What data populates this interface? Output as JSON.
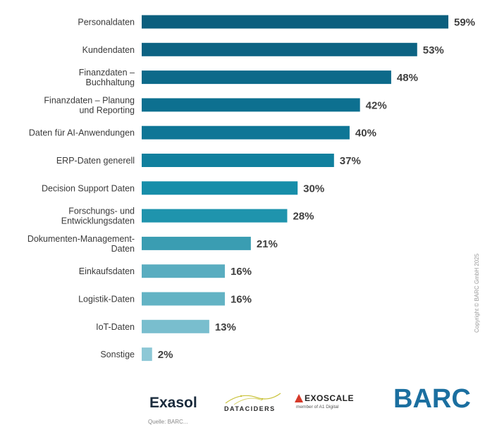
{
  "chart_data": {
    "type": "bar",
    "orientation": "horizontal",
    "categories": [
      "Personaldaten",
      "Kundendaten",
      "Finanzdaten – Buchhaltung",
      "Finanzdaten – Planung und Reporting",
      "Daten für AI-Anwendungen",
      "ERP-Daten generell",
      "Decision Support Daten",
      "Forschungs- und Entwicklungsdaten",
      "Dokumenten-Management-Daten",
      "Einkaufsdaten",
      "Logistik-Daten",
      "IoT-Daten",
      "Sonstige"
    ],
    "category_lines": [
      [
        "Personaldaten"
      ],
      [
        "Kundendaten"
      ],
      [
        "Finanzdaten –",
        "Buchhaltung"
      ],
      [
        "Finanzdaten – Planung",
        "und Reporting"
      ],
      [
        "Daten für AI-Anwendungen"
      ],
      [
        "ERP-Daten generell"
      ],
      [
        "Decision Support Daten"
      ],
      [
        "Forschungs- und",
        "Entwicklungsdaten"
      ],
      [
        "Dokumenten-Management-",
        "Daten"
      ],
      [
        "Einkaufsdaten"
      ],
      [
        "Logistik-Daten"
      ],
      [
        "IoT-Daten"
      ],
      [
        "Sonstige"
      ]
    ],
    "values": [
      59,
      53,
      48,
      42,
      40,
      37,
      30,
      28,
      21,
      16,
      16,
      13,
      2
    ],
    "value_labels": [
      "59%",
      "53%",
      "48%",
      "42%",
      "40%",
      "37%",
      "30%",
      "28%",
      "21%",
      "16%",
      "16%",
      "13%",
      "2%"
    ],
    "unit": "%",
    "xlim": [
      0,
      59
    ],
    "grid": false,
    "colors": [
      "#0c5f7e",
      "#0c6383",
      "#0d6a8a",
      "#0d7090",
      "#0e7696",
      "#10809e",
      "#178ea9",
      "#1f94ad",
      "#3a9db2",
      "#59adc0",
      "#63b3c4",
      "#79bece",
      "#8dc8d6"
    ]
  },
  "copyright": "Copyright © BARC GmbH 2025",
  "logos": {
    "exasol": "Exasol",
    "dataciders": "DATACIDERS",
    "exoscale": "EXOSCALE",
    "exoscale_sub": "member of A1 Digital",
    "barc": "BARC"
  },
  "source": "Quelle: BARC..."
}
